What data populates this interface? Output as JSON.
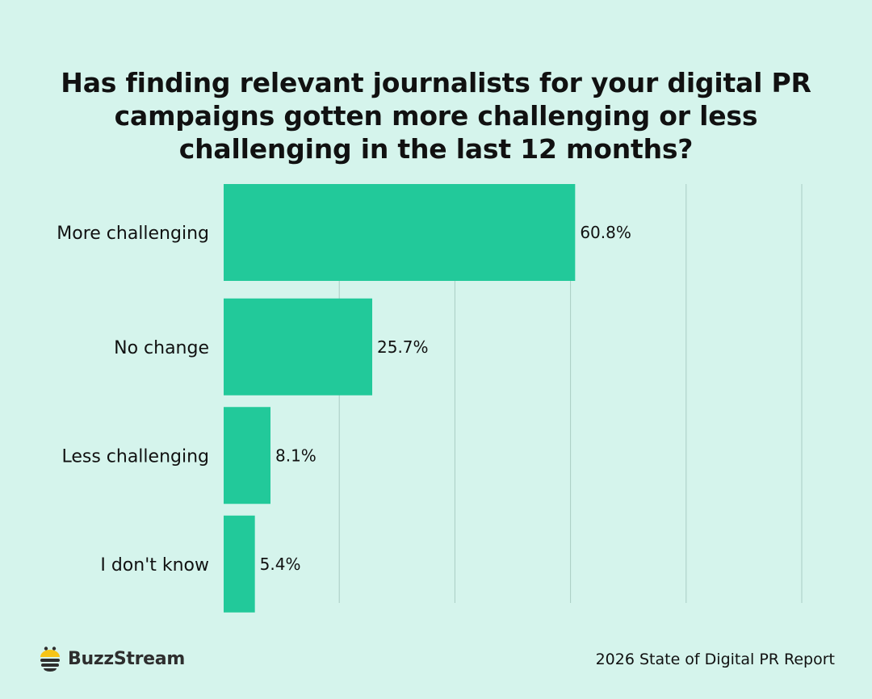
{
  "chart_data": {
    "type": "bar",
    "orientation": "horizontal",
    "title": "Has finding relevant journalists for your digital PR campaigns gotten more challenging or less challenging in the last 12 months?",
    "categories": [
      "More challenging",
      "No change",
      "Less challenging",
      "I don't know"
    ],
    "values": [
      60.8,
      25.7,
      8.1,
      5.4
    ],
    "value_labels": [
      "60.8%",
      "25.7%",
      "8.1%",
      "5.4%"
    ],
    "xlim": [
      0,
      100
    ],
    "xticks": [
      0,
      20,
      40,
      60,
      80,
      100
    ],
    "grid": true,
    "xlabel": "",
    "ylabel": ""
  },
  "colors": {
    "background": "#d5f4ec",
    "bar": "#22c99a",
    "grid": "#a9cdc3",
    "text": "#111111",
    "logo_yellow": "#f5c518",
    "logo_dark": "#2e2e2e"
  },
  "footer": {
    "brand": "BuzzStream",
    "source": "2026 State of Digital PR Report"
  }
}
